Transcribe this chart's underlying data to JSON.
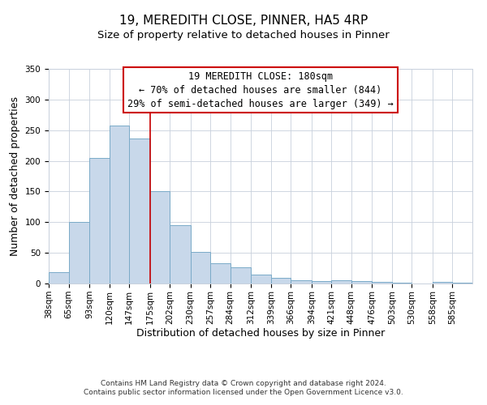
{
  "title": "19, MEREDITH CLOSE, PINNER, HA5 4RP",
  "subtitle": "Size of property relative to detached houses in Pinner",
  "xlabel": "Distribution of detached houses by size in Pinner",
  "ylabel": "Number of detached properties",
  "bar_color": "#c8d8ea",
  "bar_edge_color": "#7aaac8",
  "background_color": "#ffffff",
  "grid_color": "#c8d0dc",
  "vline_value": 175,
  "vline_color": "#cc0000",
  "annotation_box_color": "#cc0000",
  "categories": [
    "38sqm",
    "65sqm",
    "93sqm",
    "120sqm",
    "147sqm",
    "175sqm",
    "202sqm",
    "230sqm",
    "257sqm",
    "284sqm",
    "312sqm",
    "339sqm",
    "366sqm",
    "394sqm",
    "421sqm",
    "448sqm",
    "476sqm",
    "503sqm",
    "530sqm",
    "558sqm",
    "585sqm"
  ],
  "values": [
    18,
    100,
    205,
    258,
    236,
    150,
    95,
    52,
    33,
    26,
    15,
    9,
    5,
    4,
    5,
    4,
    2,
    1,
    0,
    2,
    1
  ],
  "bin_edges": [
    38,
    65,
    93,
    120,
    147,
    175,
    202,
    230,
    257,
    284,
    312,
    339,
    366,
    394,
    421,
    448,
    476,
    503,
    530,
    558,
    585,
    612
  ],
  "ylim": [
    0,
    350
  ],
  "yticks": [
    0,
    50,
    100,
    150,
    200,
    250,
    300,
    350
  ],
  "annotation_line1": "19 MEREDITH CLOSE: 180sqm",
  "annotation_line2": "← 70% of detached houses are smaller (844)",
  "annotation_line3": "29% of semi-detached houses are larger (349) →",
  "footer_line1": "Contains HM Land Registry data © Crown copyright and database right 2024.",
  "footer_line2": "Contains public sector information licensed under the Open Government Licence v3.0.",
  "title_fontsize": 11,
  "subtitle_fontsize": 9.5,
  "axis_label_fontsize": 9,
  "tick_fontsize": 7.5,
  "annotation_fontsize": 8.5,
  "footer_fontsize": 6.5
}
